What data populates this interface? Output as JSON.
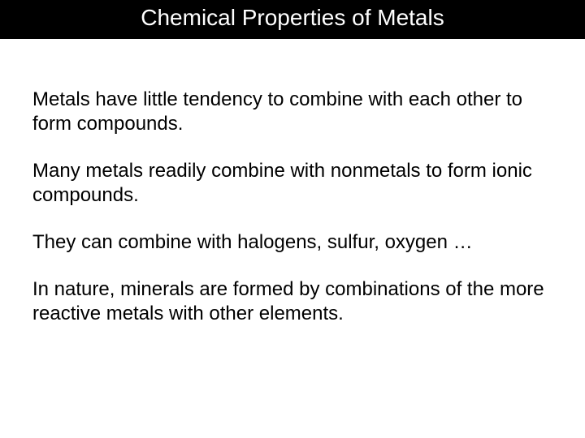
{
  "title_bar": {
    "text": "Chemical Properties of Metals",
    "background_color": "#000000",
    "text_color": "#ffffff",
    "font_size": 28
  },
  "body": {
    "background_color": "#ffffff",
    "text_color": "#000000",
    "font_size": 24,
    "paragraphs": [
      "Metals have little tendency to combine with each other to form compounds.",
      "Many metals readily combine with nonmetals to form ionic compounds.",
      "They can combine with halogens, sulfur, oxygen …",
      "In nature, minerals are formed by combinations of the more reactive metals with other elements."
    ]
  }
}
